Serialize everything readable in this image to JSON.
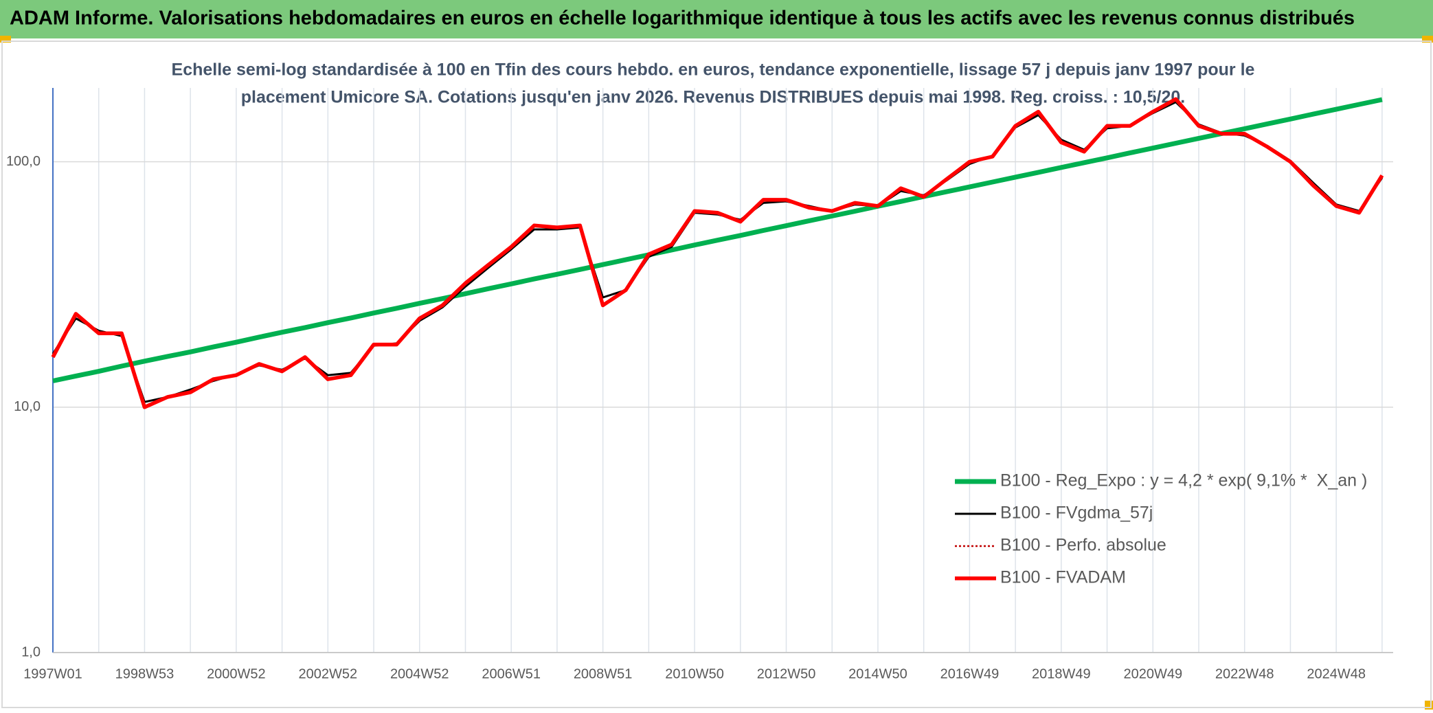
{
  "chart_data": {
    "type": "line",
    "title": "ADAM Informe. Valorisations hebdomadaires en euros en échelle logarithmique identique à tous les actifs avec les revenus connus distribués",
    "subtitle": [
      "Echelle semi-log standardisée à 100 en Tfin des cours hebdo. en euros, tendance exponentielle, lissage 57 j depuis janv 1997 pour le",
      "placement Umicore SA. Cotations jusqu'en janv 2026. Revenus DISTRIBUES depuis mai 1998. Reg. croiss. : 10,5/20."
    ],
    "categories": [
      "1997W01",
      null,
      null,
      null,
      "1998W53",
      null,
      null,
      null,
      "2000W52",
      null,
      null,
      null,
      "2002W52",
      null,
      null,
      null,
      "2004W52",
      null,
      null,
      null,
      "2006W51",
      null,
      null,
      null,
      "2008W51",
      null,
      null,
      null,
      "2010W50",
      null,
      null,
      null,
      "2012W50",
      null,
      null,
      null,
      "2014W50",
      null,
      null,
      null,
      "2016W49",
      null,
      null,
      null,
      "2018W49",
      null,
      null,
      null,
      "2020W49",
      null,
      null,
      null,
      "2022W48",
      null,
      null,
      null,
      "2024W48",
      null,
      null
    ],
    "log_scale": true,
    "grid": true,
    "ylim": [
      1,
      200
    ],
    "yticks": [
      {
        "value": 1,
        "label": "1,0"
      },
      {
        "value": 10,
        "label": "10,0"
      },
      {
        "value": 100,
        "label": "100,0"
      }
    ],
    "series": [
      {
        "name": "B100 - Reg_Expo : y = 4,2 * exp( 9,1% *  X_an )",
        "color": "#00b050",
        "line_style": "solid",
        "values": [
          12.8,
          13.4,
          14.0,
          14.7,
          15.4,
          16.1,
          16.8,
          17.6,
          18.4,
          19.3,
          20.2,
          21.1,
          22.1,
          23.1,
          24.2,
          25.3,
          26.5,
          27.7,
          29.0,
          30.4,
          31.8,
          33.3,
          34.8,
          36.4,
          38.1,
          39.9,
          41.8,
          43.7,
          45.8,
          47.9,
          50.1,
          52.5,
          54.9,
          57.5,
          60.1,
          62.9,
          65.9,
          68.9,
          72.2,
          75.5,
          79.0,
          82.7,
          86.6,
          90.6,
          94.8,
          99.2,
          103.8,
          108.7,
          113.7,
          119.0,
          124.6,
          130.4,
          136.4,
          142.8,
          149.4,
          156.4,
          163.7,
          171.3,
          179.2
        ]
      },
      {
        "name": "B100 - FVgdma_57j",
        "color": "#000000",
        "line_style": "solid",
        "values": [
          16.5,
          23,
          20.5,
          19.5,
          10.5,
          11,
          11.8,
          12.8,
          13.6,
          14.8,
          14.2,
          15.8,
          13.5,
          13.8,
          17.8,
          18.2,
          22.5,
          25.5,
          31,
          37,
          44,
          53,
          53,
          54,
          28,
          30,
          41,
          45,
          62,
          61,
          58,
          68,
          69,
          66,
          63,
          67,
          66,
          76,
          73,
          84,
          98,
          106,
          138,
          155,
          123,
          112,
          137,
          140,
          158,
          175,
          142,
          131,
          128,
          116,
          101,
          82,
          67,
          63,
          86
        ]
      },
      {
        "name": "B100 - Perfo. absolue",
        "color": "#c00000",
        "line_style": "dotted",
        "values": [
          16,
          24,
          20,
          20,
          10,
          11,
          11.5,
          13,
          13.5,
          15,
          14,
          16,
          13,
          13.5,
          18,
          18,
          23,
          26,
          32,
          38,
          45,
          55,
          54,
          55,
          26,
          30,
          42,
          46,
          63,
          62,
          57,
          70,
          70,
          65,
          63,
          68,
          66,
          78,
          72,
          85,
          100,
          105,
          140,
          160,
          120,
          110,
          140,
          140,
          160,
          180,
          140,
          130,
          130,
          115,
          100,
          80,
          66,
          62,
          88
        ]
      },
      {
        "name": "B100 - FVADAM",
        "color": "#ff0000",
        "line_style": "solid",
        "values": [
          16,
          24,
          20,
          20,
          10,
          11,
          11.5,
          13,
          13.5,
          15,
          14,
          16,
          13,
          13.5,
          18,
          18,
          23,
          26,
          32,
          38,
          45,
          55,
          54,
          55,
          26,
          30,
          42,
          46,
          63,
          62,
          57,
          70,
          70,
          65,
          63,
          68,
          66,
          78,
          72,
          85,
          100,
          105,
          140,
          160,
          120,
          110,
          140,
          140,
          160,
          180,
          140,
          130,
          130,
          115,
          100,
          80,
          66,
          62,
          88
        ]
      }
    ]
  }
}
